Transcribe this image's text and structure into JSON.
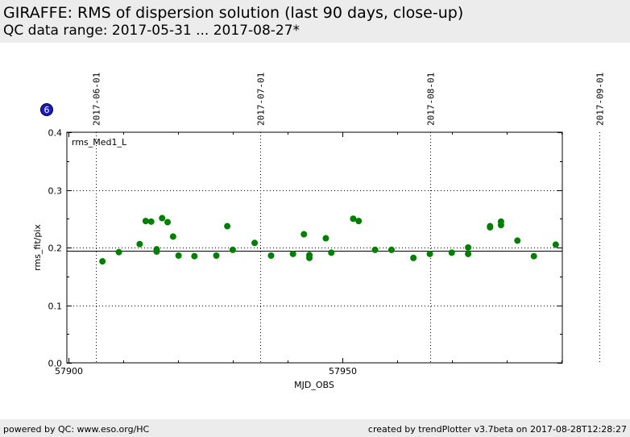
{
  "header": {
    "title": "GIRAFFE: RMS of dispersion solution (last 90 days, close-up)",
    "subtitle": "QC data range: 2017-05-31 ... 2017-08-27*"
  },
  "badge": {
    "label": "6",
    "color": "#1a1acc"
  },
  "footer": {
    "left": "powered by QC: www.eso.org/HC",
    "right": "created by trendPlotter v3.7beta on 2017-08-28T12:28:27"
  },
  "chart_data": {
    "type": "scatter",
    "xlabel": "MJD_OBS",
    "ylabel": "rms_fit/pix",
    "xlim": [
      57899.7,
      57990.2
    ],
    "ylim": [
      0.0,
      0.4
    ],
    "x_ticks": [
      57900,
      57950
    ],
    "x_tick_labels": [
      "57900",
      "57950"
    ],
    "y_ticks": [
      0.0,
      0.1,
      0.2,
      0.3,
      0.4
    ],
    "y_tick_labels": [
      "0.0",
      "0.1",
      "0.2",
      "0.3",
      "0.4"
    ],
    "date_lines": [
      {
        "x": 57905,
        "label": "2017-06-01"
      },
      {
        "x": 57935,
        "label": "2017-07-01"
      },
      {
        "x": 57966,
        "label": "2017-08-01"
      },
      {
        "x": 57997,
        "label": "2017-09-01"
      }
    ],
    "grid": "dotted",
    "reference_line": 0.195,
    "panel_label": "rms_Med1_L",
    "marker_color": "#008000",
    "points": [
      {
        "x": 57906.2,
        "y": 0.176
      },
      {
        "x": 57909.2,
        "y": 0.192
      },
      {
        "x": 57913.0,
        "y": 0.206
      },
      {
        "x": 57914.1,
        "y": 0.246
      },
      {
        "x": 57915.1,
        "y": 0.245
      },
      {
        "x": 57916.1,
        "y": 0.197
      },
      {
        "x": 57916.1,
        "y": 0.193
      },
      {
        "x": 57917.1,
        "y": 0.251
      },
      {
        "x": 57918.1,
        "y": 0.244
      },
      {
        "x": 57919.1,
        "y": 0.219
      },
      {
        "x": 57920.1,
        "y": 0.186
      },
      {
        "x": 57923.0,
        "y": 0.185
      },
      {
        "x": 57927.0,
        "y": 0.186
      },
      {
        "x": 57929.0,
        "y": 0.237
      },
      {
        "x": 57930.0,
        "y": 0.196
      },
      {
        "x": 57934.0,
        "y": 0.208
      },
      {
        "x": 57937.0,
        "y": 0.186
      },
      {
        "x": 57941.0,
        "y": 0.189
      },
      {
        "x": 57943.0,
        "y": 0.223
      },
      {
        "x": 57944.0,
        "y": 0.187
      },
      {
        "x": 57944.0,
        "y": 0.182
      },
      {
        "x": 57947.0,
        "y": 0.216
      },
      {
        "x": 57948.0,
        "y": 0.191
      },
      {
        "x": 57952.0,
        "y": 0.25
      },
      {
        "x": 57953.0,
        "y": 0.246
      },
      {
        "x": 57956.0,
        "y": 0.196
      },
      {
        "x": 57959.0,
        "y": 0.196
      },
      {
        "x": 57963.0,
        "y": 0.182
      },
      {
        "x": 57966.0,
        "y": 0.189
      },
      {
        "x": 57970.0,
        "y": 0.191
      },
      {
        "x": 57973.0,
        "y": 0.2
      },
      {
        "x": 57973.0,
        "y": 0.189
      },
      {
        "x": 57977.0,
        "y": 0.235
      },
      {
        "x": 57977.0,
        "y": 0.237
      },
      {
        "x": 57979.0,
        "y": 0.245
      },
      {
        "x": 57979.0,
        "y": 0.239
      },
      {
        "x": 57982.0,
        "y": 0.212
      },
      {
        "x": 57985.0,
        "y": 0.185
      },
      {
        "x": 57989.0,
        "y": 0.205
      }
    ]
  }
}
